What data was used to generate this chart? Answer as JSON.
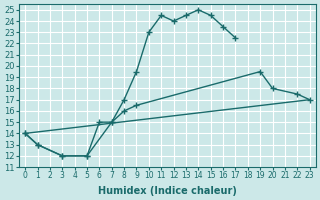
{
  "xlabel": "Humidex (Indice chaleur)",
  "xlim": [
    -0.5,
    23.5
  ],
  "ylim": [
    11,
    25.5
  ],
  "xticks": [
    0,
    1,
    2,
    3,
    4,
    5,
    6,
    7,
    8,
    9,
    10,
    11,
    12,
    13,
    14,
    15,
    16,
    17,
    18,
    19,
    20,
    21,
    22,
    23
  ],
  "yticks": [
    11,
    12,
    13,
    14,
    15,
    16,
    17,
    18,
    19,
    20,
    21,
    22,
    23,
    24,
    25
  ],
  "background_color": "#cce8e8",
  "line_color": "#1a6b6b",
  "grid_color": "#ffffff",
  "line1_x": [
    0,
    1,
    3,
    5,
    7,
    8,
    9,
    10,
    11,
    12,
    13,
    14,
    15,
    16,
    17
  ],
  "line1_y": [
    14,
    13,
    12,
    12,
    15,
    17,
    19.5,
    23,
    24.5,
    24,
    24.5,
    25,
    24.5,
    23.5,
    22.5
  ],
  "line2_x": [
    0,
    1,
    3,
    5,
    6,
    7,
    8,
    9,
    19,
    20,
    22,
    23
  ],
  "line2_y": [
    14,
    13,
    12,
    12,
    15,
    15,
    16,
    16.5,
    19.5,
    18,
    17.5,
    17
  ],
  "line3_x": [
    0,
    23
  ],
  "line3_y": [
    14,
    17
  ]
}
